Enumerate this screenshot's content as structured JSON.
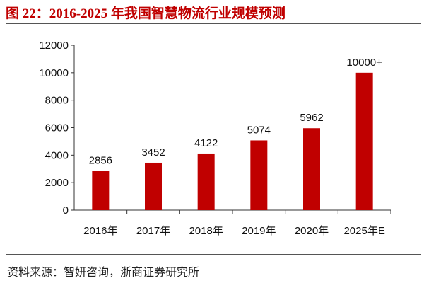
{
  "title": "图 22：2016-2025 年我国智慧物流行业规模预测",
  "source": "资料来源：智妍咨询，浙商证券研究所",
  "chart_data": {
    "type": "bar",
    "categories": [
      "2016年",
      "2017年",
      "2018年",
      "2019年",
      "2020年",
      "2025年E"
    ],
    "values": [
      2856,
      3452,
      4122,
      5074,
      5962,
      10000
    ],
    "data_labels": [
      "2856",
      "3452",
      "4122",
      "5074",
      "5962",
      "10000+"
    ],
    "yticks": [
      "0",
      "2000",
      "4000",
      "6000",
      "8000",
      "10000",
      "12000"
    ],
    "ylim": [
      0,
      12000
    ],
    "grid": false,
    "bar_color": "#c00000"
  }
}
